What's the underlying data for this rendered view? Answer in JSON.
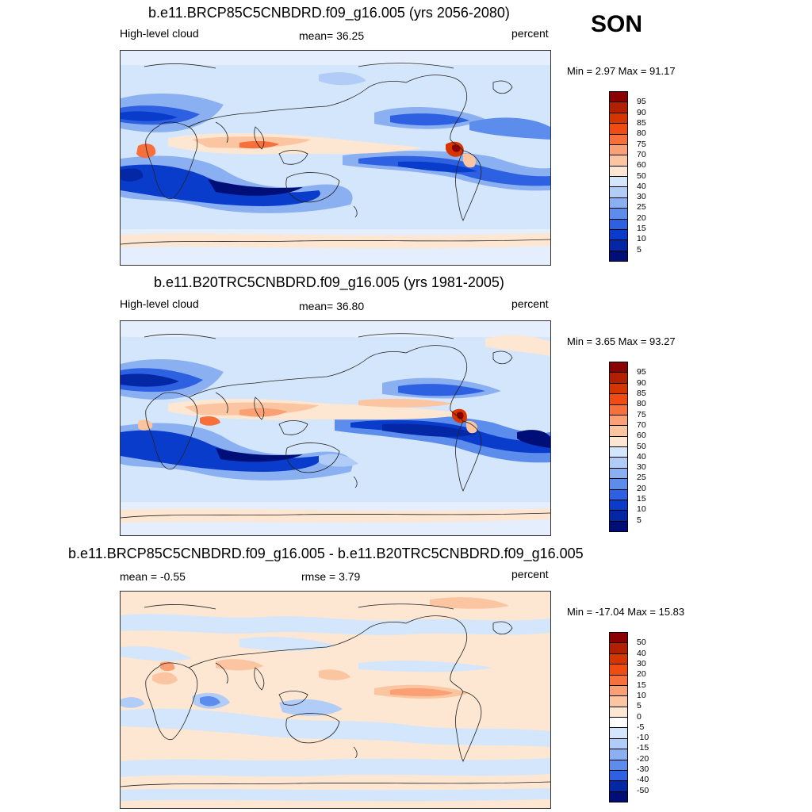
{
  "season": "SON",
  "panels": [
    {
      "title": "b.e11.BRCP85C5CNBDRD.f09_g16.005 (yrs 2056-2080)",
      "left_label": "High-level cloud",
      "center_label": "mean=  36.25",
      "right_label": "percent",
      "minmax": "Min =   2.97 Max =  91.17",
      "colorbar": {
        "labels": [
          "95",
          "90",
          "85",
          "80",
          "75",
          "70",
          "60",
          "50",
          "40",
          "30",
          "25",
          "20",
          "15",
          "10",
          "5"
        ],
        "colors": [
          "#8b0000",
          "#b22000",
          "#d63500",
          "#ef4b12",
          "#f7703c",
          "#faa074",
          "#fcc5a2",
          "#fde7d2",
          "#d4e6fb",
          "#b1cdf7",
          "#8bb0f2",
          "#5c8cec",
          "#2d61e2",
          "#0a3ccc",
          "#0427a6",
          "#000f78"
        ]
      }
    },
    {
      "title": "b.e11.B20TRC5CNBDRD.f09_g16.005 (yrs 1981-2005)",
      "left_label": "High-level cloud",
      "center_label": "mean=  36.80",
      "right_label": "percent",
      "minmax": "Min =   3.65 Max =  93.27",
      "colorbar": {
        "labels": [
          "95",
          "90",
          "85",
          "80",
          "75",
          "70",
          "60",
          "50",
          "40",
          "30",
          "25",
          "20",
          "15",
          "10",
          "5"
        ],
        "colors": [
          "#8b0000",
          "#b22000",
          "#d63500",
          "#ef4b12",
          "#f7703c",
          "#faa074",
          "#fcc5a2",
          "#fde7d2",
          "#d4e6fb",
          "#b1cdf7",
          "#8bb0f2",
          "#5c8cec",
          "#2d61e2",
          "#0a3ccc",
          "#0427a6",
          "#000f78"
        ]
      }
    },
    {
      "title": "b.e11.BRCP85C5CNBDRD.f09_g16.005 - b.e11.B20TRC5CNBDRD.f09_g16.005",
      "left_label": "mean =  -0.55",
      "center_label": "rmse =   3.79",
      "right_label": "percent",
      "minmax": "Min = -17.04 Max =  15.83",
      "colorbar": {
        "labels": [
          "50",
          "40",
          "30",
          "20",
          "15",
          "10",
          "5",
          "0",
          "-5",
          "-10",
          "-15",
          "-20",
          "-30",
          "-40",
          "-50"
        ],
        "colors": [
          "#8b0000",
          "#b22000",
          "#d63500",
          "#ef4b12",
          "#f7703c",
          "#faa074",
          "#fcc5a2",
          "#fde7d2",
          "#ffffff",
          "#d4e6fb",
          "#b1cdf7",
          "#8bb0f2",
          "#5c8cec",
          "#2d61e2",
          "#0427a6",
          "#000f78"
        ]
      }
    }
  ]
}
